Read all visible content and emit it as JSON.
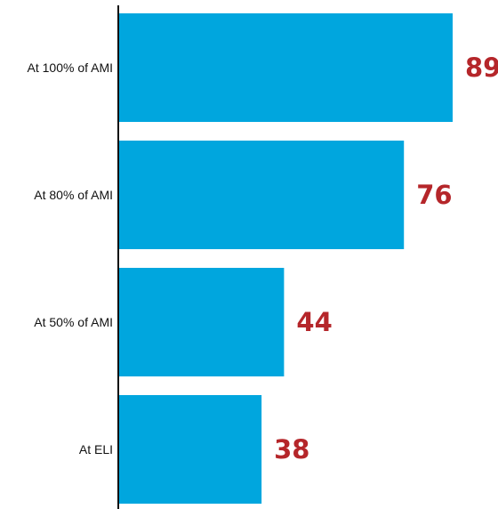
{
  "chart_data": {
    "type": "bar",
    "orientation": "horizontal",
    "categories": [
      "At 100% of AMI",
      "At 80% of AMI",
      "At 50% of AMI",
      "At ELI"
    ],
    "values": [
      89,
      76,
      44,
      38
    ],
    "data_labels": [
      "89",
      "76",
      "44",
      "38"
    ],
    "title": "",
    "xlabel": "",
    "ylabel": "",
    "xlim": [
      0,
      89
    ],
    "grid": false,
    "legend": "none",
    "colors": {
      "bar": "#00a6de",
      "value_label": "#b5262a",
      "axis": "#111111",
      "category_label": "#111111"
    }
  }
}
